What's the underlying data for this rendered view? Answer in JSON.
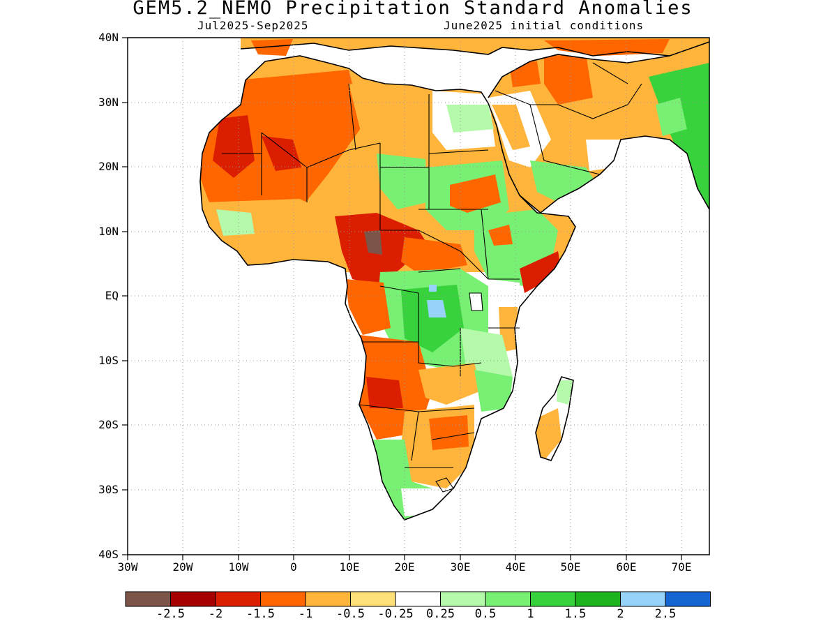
{
  "title": "GEM5.2_NEMO Precipitation Standard Anomalies",
  "subtitle_left": "Jul2025-Sep2025",
  "subtitle_right": "June2025 initial conditions",
  "map": {
    "lon_range": [
      -30,
      75
    ],
    "lat_range": [
      -40,
      40
    ],
    "lat_labels": [
      "40N",
      "30N",
      "20N",
      "10N",
      "EQ",
      "10S",
      "20S",
      "30S",
      "40S"
    ],
    "lon_labels": [
      "30W",
      "20W",
      "10W",
      "0",
      "10E",
      "20E",
      "30E",
      "40E",
      "50E",
      "60E",
      "70E"
    ],
    "grid": "dotted"
  },
  "colorbar": {
    "colors": [
      "#7d5548",
      "#a50000",
      "#dc1e00",
      "#ff6600",
      "#ffb43c",
      "#ffe078",
      "#ffffff",
      "#b4faaa",
      "#78f073",
      "#37d23c",
      "#1eb41e",
      "#96d2fa",
      "#1464d2"
    ],
    "labels": [
      "-2.5",
      "-2",
      "-1.5",
      "-1",
      "-0.5",
      "-0.25",
      "0.25",
      "0.5",
      "1",
      "1.5",
      "2",
      "2.5"
    ]
  },
  "anomaly_regions": [
    {
      "name": "sahara-west",
      "color": "#ff6600"
    },
    {
      "name": "mauritania",
      "color": "#dc1e00"
    },
    {
      "name": "central-sahara",
      "color": "#ffb43c"
    },
    {
      "name": "sahel-west",
      "color": "#ff6600"
    },
    {
      "name": "nigeria-cameroon",
      "color": "#dc1e00"
    },
    {
      "name": "cameroon-core",
      "color": "#7d5548"
    },
    {
      "name": "sudan-east",
      "color": "#78f073"
    },
    {
      "name": "sudan-red",
      "color": "#ff6600"
    },
    {
      "name": "congo-basin",
      "color": "#78f073"
    },
    {
      "name": "congo-core",
      "color": "#37d23c"
    },
    {
      "name": "congo-blue",
      "color": "#96d2fa"
    },
    {
      "name": "ethiopia",
      "color": "#78f073"
    },
    {
      "name": "somalia-red",
      "color": "#dc1e00"
    },
    {
      "name": "angola-south",
      "color": "#ff6600"
    },
    {
      "name": "angola-red",
      "color": "#dc1e00"
    },
    {
      "name": "southern-africa",
      "color": "#ffb43c"
    },
    {
      "name": "south-africa-green",
      "color": "#78f073"
    },
    {
      "name": "arabia",
      "color": "#ffb43c"
    },
    {
      "name": "arabia-green",
      "color": "#78f073"
    },
    {
      "name": "iran-red",
      "color": "#ff6600"
    },
    {
      "name": "india-green",
      "color": "#37d23c"
    },
    {
      "name": "madagascar",
      "color": "#ffb43c"
    }
  ]
}
